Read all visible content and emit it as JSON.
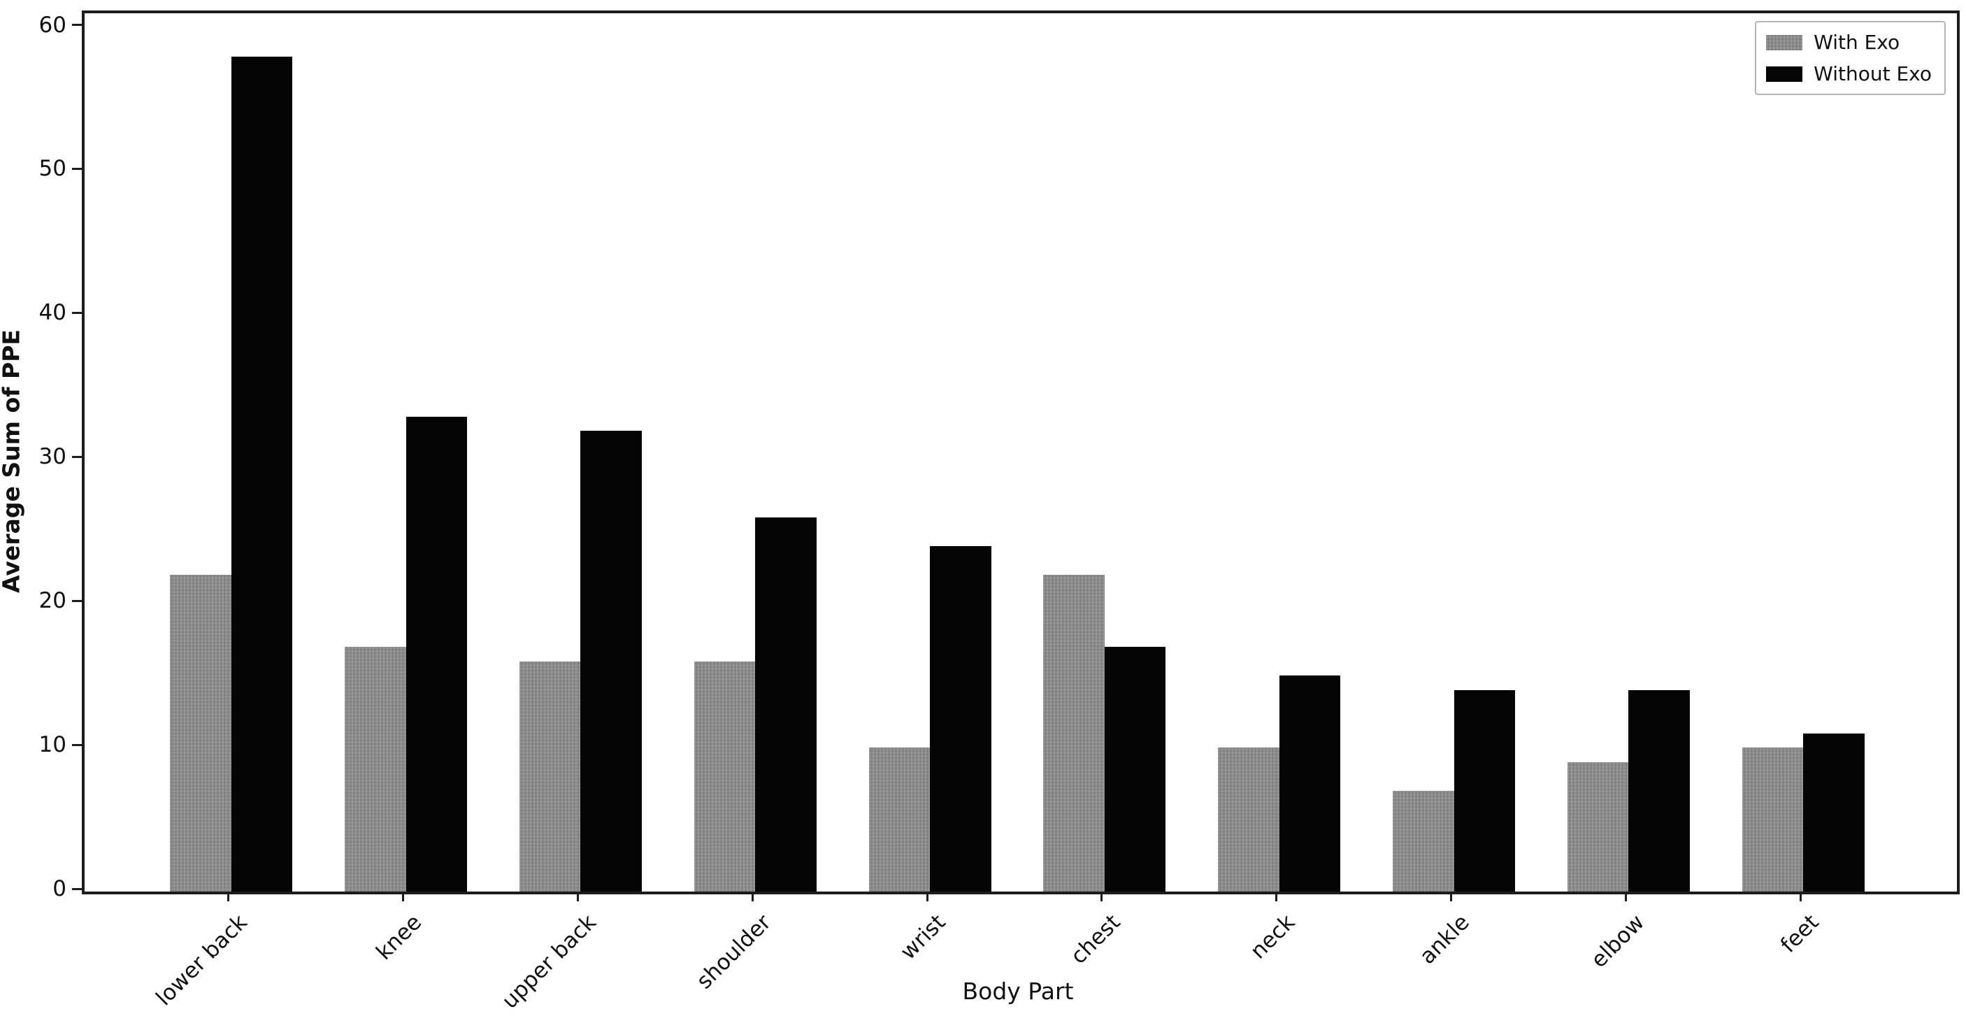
{
  "chart_data": {
    "type": "bar",
    "title": "",
    "xlabel": "Body Part",
    "ylabel": "Average Sum of PPE",
    "categories": [
      "lower back",
      "knee",
      "upper back",
      "shoulder",
      "wrist",
      "chest",
      "neck",
      "ankle",
      "elbow",
      "feet"
    ],
    "series": [
      {
        "name": "With Exo",
        "color": "#8a8a8a",
        "values": [
          22,
          17,
          16,
          16,
          10,
          22,
          10,
          7,
          9,
          10
        ]
      },
      {
        "name": "Without Exo",
        "color": "#050505",
        "values": [
          58,
          33,
          32,
          26,
          24,
          17,
          15,
          14,
          14,
          11
        ]
      }
    ],
    "yticks": [
      0,
      10,
      20,
      30,
      40,
      50,
      60
    ],
    "ylim": [
      0,
      61
    ],
    "xlim": [
      -0.84,
      9.88
    ],
    "bar_width": 0.35,
    "xtick_rotation_deg": 45,
    "grid": false,
    "legend_position": "upper-right"
  },
  "colors": {
    "with_exo": "#8a8a8a",
    "without_exo": "#050505",
    "spine": "#1c1c1c",
    "legend_border": "#b5b5b5",
    "background": "#ffffff",
    "text": "#111111"
  }
}
